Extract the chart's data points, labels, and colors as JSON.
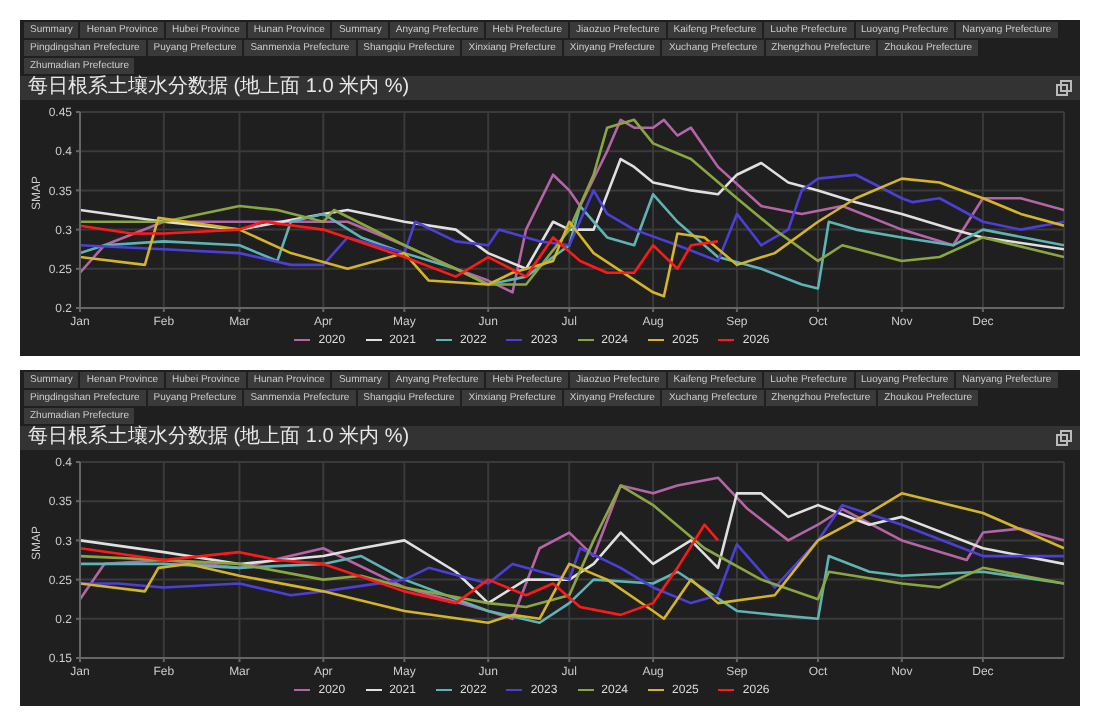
{
  "chart_data": [
    {
      "type": "line",
      "title": "每日根系土壤水分数据 (地上面 1.0 米内 %)",
      "ylabel": "SMAP",
      "annotations": [
        "Summary",
        "Henan Province",
        "Hubei Province",
        "Hunan Province",
        "Summary",
        "Anyang Prefecture",
        "Hebi Prefecture",
        "Jiaozuo Prefecture",
        "Kaifeng Prefecture",
        "Luohe Prefecture",
        "Luoyang Prefecture",
        "Nanyang Prefecture",
        "Pingdingshan Prefecture",
        "Puyang Prefecture",
        "Sanmenxia Prefecture",
        "Shangqiu Prefecture",
        "Xinxiang Prefecture",
        "Xinyang Prefecture",
        "Xuchang Prefecture",
        "Zhengzhou Prefecture",
        "Zhoukou Prefecture",
        "Zhumadian Prefecture"
      ],
      "xlim": [
        "--01-01",
        "--12-31"
      ],
      "xticks": [
        {
          "value": "--01-01",
          "label": "Jan"
        },
        {
          "value": "--02-01",
          "label": "Feb"
        },
        {
          "value": "--03-01",
          "label": "Mar"
        },
        {
          "value": "--04-01",
          "label": "Apr"
        },
        {
          "value": "--05-01",
          "label": "May"
        },
        {
          "value": "--06-01",
          "label": "Jun"
        },
        {
          "value": "--07-01",
          "label": "Jul"
        },
        {
          "value": "--08-01",
          "label": "Aug"
        },
        {
          "value": "--09-01",
          "label": "Sep"
        },
        {
          "value": "--10-01",
          "label": "Oct"
        },
        {
          "value": "--11-01",
          "label": "Nov"
        },
        {
          "value": "--12-01",
          "label": "Dec"
        }
      ],
      "ylim": [
        0.2,
        0.45
      ],
      "yticks": [
        0.2,
        0.25,
        0.3,
        0.35,
        0.4,
        0.45
      ],
      "grid": true,
      "legend": "bottom",
      "series": [
        {
          "name": "2020",
          "color": "#b565a7",
          "x": [
            "--01-01",
            "--01-10",
            "--02-01",
            "--03-01",
            "--03-20",
            "--04-10",
            "--05-01",
            "--05-20",
            "--06-01",
            "--06-10",
            "--06-15",
            "--06-25",
            "--07-01",
            "--07-05",
            "--07-15",
            "--07-20",
            "--07-25",
            "--08-01",
            "--08-05",
            "--08-10",
            "--08-15",
            "--08-25",
            "--09-10",
            "--09-25",
            "--10-10",
            "--11-01",
            "--11-20",
            "--12-01",
            "--12-15",
            "--12-31"
          ],
          "values": [
            0.245,
            0.28,
            0.31,
            0.31,
            0.31,
            0.31,
            0.28,
            0.25,
            0.235,
            0.22,
            0.3,
            0.37,
            0.35,
            0.33,
            0.4,
            0.44,
            0.43,
            0.43,
            0.44,
            0.42,
            0.43,
            0.38,
            0.33,
            0.32,
            0.33,
            0.3,
            0.28,
            0.34,
            0.34,
            0.325
          ]
        },
        {
          "name": "2021",
          "color": "#e0e0e0",
          "x": [
            "--01-01",
            "--02-01",
            "--03-01",
            "--04-01",
            "--04-10",
            "--05-01",
            "--05-20",
            "--06-01",
            "--06-15",
            "--06-25",
            "--07-01",
            "--07-10",
            "--07-20",
            "--07-25",
            "--08-01",
            "--08-15",
            "--08-25",
            "--09-01",
            "--09-10",
            "--09-20",
            "--10-01",
            "--10-15",
            "--11-01",
            "--11-20",
            "--12-01",
            "--12-31"
          ],
          "values": [
            0.325,
            0.31,
            0.3,
            0.32,
            0.325,
            0.31,
            0.3,
            0.27,
            0.25,
            0.31,
            0.3,
            0.3,
            0.39,
            0.38,
            0.36,
            0.35,
            0.345,
            0.37,
            0.385,
            0.36,
            0.35,
            0.335,
            0.32,
            0.3,
            0.29,
            0.275
          ]
        },
        {
          "name": "2022",
          "color": "#5fb3b3",
          "x": [
            "--01-01",
            "--01-10",
            "--02-01",
            "--03-01",
            "--03-15",
            "--03-20",
            "--04-01",
            "--04-15",
            "--05-01",
            "--05-20",
            "--06-01",
            "--06-15",
            "--07-01",
            "--07-05",
            "--07-15",
            "--07-25",
            "--08-01",
            "--08-10",
            "--08-25",
            "--09-10",
            "--09-25",
            "--10-01",
            "--10-05",
            "--10-15",
            "--11-01",
            "--11-20",
            "--12-01",
            "--12-31"
          ],
          "values": [
            0.27,
            0.28,
            0.285,
            0.28,
            0.26,
            0.31,
            0.32,
            0.29,
            0.27,
            0.25,
            0.23,
            0.24,
            0.28,
            0.33,
            0.29,
            0.28,
            0.345,
            0.31,
            0.265,
            0.25,
            0.23,
            0.225,
            0.31,
            0.3,
            0.29,
            0.28,
            0.3,
            0.28
          ]
        },
        {
          "name": "2023",
          "color": "#4b3fd6",
          "x": [
            "--01-01",
            "--02-01",
            "--03-01",
            "--03-20",
            "--04-01",
            "--04-10",
            "--05-01",
            "--05-05",
            "--05-20",
            "--06-01",
            "--06-05",
            "--06-20",
            "--07-01",
            "--07-10",
            "--07-15",
            "--07-25",
            "--08-10",
            "--08-25",
            "--09-01",
            "--09-10",
            "--09-20",
            "--09-25",
            "--10-01",
            "--10-15",
            "--11-01",
            "--11-05",
            "--11-15",
            "--12-01",
            "--12-15",
            "--12-31"
          ],
          "values": [
            0.28,
            0.275,
            0.27,
            0.255,
            0.255,
            0.29,
            0.27,
            0.31,
            0.285,
            0.28,
            0.3,
            0.285,
            0.28,
            0.35,
            0.32,
            0.3,
            0.28,
            0.26,
            0.32,
            0.28,
            0.3,
            0.35,
            0.365,
            0.37,
            0.34,
            0.335,
            0.34,
            0.31,
            0.3,
            0.31
          ]
        },
        {
          "name": "2024",
          "color": "#8aa640",
          "x": [
            "--01-01",
            "--02-01",
            "--03-01",
            "--03-15",
            "--04-01",
            "--04-05",
            "--05-01",
            "--05-20",
            "--06-01",
            "--06-15",
            "--07-01",
            "--07-10",
            "--07-15",
            "--07-25",
            "--08-01",
            "--08-15",
            "--09-01",
            "--09-15",
            "--10-01",
            "--10-10",
            "--11-01",
            "--11-15",
            "--12-01",
            "--12-31"
          ],
          "values": [
            0.31,
            0.31,
            0.33,
            0.325,
            0.31,
            0.325,
            0.28,
            0.25,
            0.23,
            0.23,
            0.3,
            0.37,
            0.43,
            0.44,
            0.41,
            0.39,
            0.34,
            0.3,
            0.26,
            0.28,
            0.26,
            0.265,
            0.29,
            0.265
          ]
        },
        {
          "name": "2025",
          "color": "#d4b42a",
          "x": [
            "--01-01",
            "--01-25",
            "--01-30",
            "--03-01",
            "--03-20",
            "--04-10",
            "--05-01",
            "--05-10",
            "--06-01",
            "--06-10",
            "--06-25",
            "--07-01",
            "--07-10",
            "--08-01",
            "--08-05",
            "--08-10",
            "--08-20",
            "--09-01",
            "--09-15",
            "--10-01",
            "--10-15",
            "--11-01",
            "--11-15",
            "--12-01",
            "--12-15",
            "--12-31"
          ],
          "values": [
            0.265,
            0.255,
            0.315,
            0.3,
            0.27,
            0.25,
            0.27,
            0.235,
            0.23,
            0.245,
            0.26,
            0.31,
            0.27,
            0.22,
            0.215,
            0.295,
            0.29,
            0.255,
            0.27,
            0.31,
            0.34,
            0.365,
            0.36,
            0.34,
            0.32,
            0.305
          ]
        },
        {
          "name": "2026",
          "color": "#ff1a1a",
          "x": [
            "--01-01",
            "--01-20",
            "--02-01",
            "--03-01",
            "--03-10",
            "--04-01",
            "--05-01",
            "--05-20",
            "--06-01",
            "--06-15",
            "--06-25",
            "--07-05",
            "--07-15",
            "--07-25",
            "--08-01",
            "--08-10",
            "--08-15",
            "--08-25"
          ],
          "values": [
            0.305,
            0.295,
            0.295,
            0.3,
            0.31,
            0.3,
            0.265,
            0.24,
            0.265,
            0.24,
            0.29,
            0.26,
            0.245,
            0.245,
            0.28,
            0.25,
            0.28,
            0.285
          ]
        }
      ]
    },
    {
      "type": "line",
      "title": "每日根系土壤水分数据 (地上面 1.0 米内 %)",
      "ylabel": "SMAP",
      "annotations": [
        "Summary",
        "Henan Province",
        "Hubei Province",
        "Hunan Province",
        "Summary",
        "Anyang Prefecture",
        "Hebi Prefecture",
        "Jiaozuo Prefecture",
        "Kaifeng Prefecture",
        "Luohe Prefecture",
        "Luoyang Prefecture",
        "Nanyang Prefecture",
        "Pingdingshan Prefecture",
        "Puyang Prefecture",
        "Sanmenxia Prefecture",
        "Shangqiu Prefecture",
        "Xinxiang Prefecture",
        "Xinyang Prefecture",
        "Xuchang Prefecture",
        "Zhengzhou Prefecture",
        "Zhoukou Prefecture",
        "Zhumadian Prefecture"
      ],
      "xlim": [
        "--01-01",
        "--12-31"
      ],
      "xticks": [
        {
          "value": "--01-01",
          "label": "Jan"
        },
        {
          "value": "--02-01",
          "label": "Feb"
        },
        {
          "value": "--03-01",
          "label": "Mar"
        },
        {
          "value": "--04-01",
          "label": "Apr"
        },
        {
          "value": "--05-01",
          "label": "May"
        },
        {
          "value": "--06-01",
          "label": "Jun"
        },
        {
          "value": "--07-01",
          "label": "Jul"
        },
        {
          "value": "--08-01",
          "label": "Aug"
        },
        {
          "value": "--09-01",
          "label": "Sep"
        },
        {
          "value": "--10-01",
          "label": "Oct"
        },
        {
          "value": "--11-01",
          "label": "Nov"
        },
        {
          "value": "--12-01",
          "label": "Dec"
        }
      ],
      "ylim": [
        0.15,
        0.4
      ],
      "yticks": [
        0.15,
        0.2,
        0.25,
        0.3,
        0.35,
        0.4
      ],
      "grid": true,
      "legend": "bottom",
      "series": [
        {
          "name": "2020",
          "color": "#b565a7",
          "x": [
            "--01-01",
            "--01-10",
            "--02-01",
            "--03-01",
            "--04-01",
            "--05-01",
            "--06-01",
            "--06-10",
            "--06-20",
            "--07-01",
            "--07-10",
            "--07-20",
            "--08-01",
            "--08-10",
            "--08-25",
            "--09-05",
            "--09-20",
            "--10-01",
            "--10-10",
            "--11-01",
            "--11-25",
            "--12-01",
            "--12-15",
            "--12-31"
          ],
          "values": [
            0.225,
            0.27,
            0.275,
            0.265,
            0.29,
            0.24,
            0.21,
            0.2,
            0.29,
            0.31,
            0.28,
            0.37,
            0.36,
            0.37,
            0.38,
            0.34,
            0.3,
            0.32,
            0.34,
            0.3,
            0.275,
            0.31,
            0.315,
            0.3
          ]
        },
        {
          "name": "2021",
          "color": "#e0e0e0",
          "x": [
            "--01-01",
            "--02-01",
            "--03-01",
            "--04-01",
            "--04-15",
            "--05-01",
            "--05-20",
            "--06-01",
            "--06-15",
            "--07-01",
            "--07-10",
            "--07-20",
            "--08-01",
            "--08-15",
            "--08-25",
            "--09-01",
            "--09-10",
            "--09-20",
            "--10-01",
            "--10-20",
            "--11-01",
            "--12-01",
            "--12-31"
          ],
          "values": [
            0.3,
            0.285,
            0.27,
            0.28,
            0.29,
            0.3,
            0.26,
            0.22,
            0.25,
            0.25,
            0.27,
            0.31,
            0.27,
            0.3,
            0.265,
            0.36,
            0.36,
            0.33,
            0.345,
            0.32,
            0.33,
            0.29,
            0.27
          ]
        },
        {
          "name": "2022",
          "color": "#5fb3b3",
          "x": [
            "--01-01",
            "--02-01",
            "--03-01",
            "--04-01",
            "--04-15",
            "--05-01",
            "--06-01",
            "--06-20",
            "--07-01",
            "--07-10",
            "--08-01",
            "--08-10",
            "--09-01",
            "--09-15",
            "--10-01",
            "--10-05",
            "--10-20",
            "--11-01",
            "--12-01",
            "--12-31"
          ],
          "values": [
            0.27,
            0.27,
            0.265,
            0.27,
            0.28,
            0.25,
            0.21,
            0.195,
            0.22,
            0.25,
            0.245,
            0.26,
            0.21,
            0.205,
            0.2,
            0.28,
            0.26,
            0.255,
            0.26,
            0.245
          ]
        },
        {
          "name": "2023",
          "color": "#4b3fd6",
          "x": [
            "--01-01",
            "--01-15",
            "--02-01",
            "--03-01",
            "--03-20",
            "--04-01",
            "--05-01",
            "--05-10",
            "--06-01",
            "--06-10",
            "--07-01",
            "--07-05",
            "--07-20",
            "--08-01",
            "--08-15",
            "--08-25",
            "--09-01",
            "--09-15",
            "--10-01",
            "--10-10",
            "--11-01",
            "--12-01",
            "--12-31"
          ],
          "values": [
            0.245,
            0.245,
            0.24,
            0.245,
            0.23,
            0.235,
            0.25,
            0.265,
            0.245,
            0.27,
            0.25,
            0.29,
            0.265,
            0.24,
            0.22,
            0.23,
            0.295,
            0.24,
            0.3,
            0.345,
            0.32,
            0.28,
            0.28
          ]
        },
        {
          "name": "2024",
          "color": "#8aa640",
          "x": [
            "--01-01",
            "--02-01",
            "--03-01",
            "--04-01",
            "--04-15",
            "--05-01",
            "--06-01",
            "--06-15",
            "--07-01",
            "--07-10",
            "--07-20",
            "--08-01",
            "--08-20",
            "--09-10",
            "--10-01",
            "--10-05",
            "--11-01",
            "--11-15",
            "--12-01",
            "--12-31"
          ],
          "values": [
            0.28,
            0.275,
            0.27,
            0.25,
            0.255,
            0.24,
            0.22,
            0.215,
            0.23,
            0.3,
            0.37,
            0.345,
            0.29,
            0.25,
            0.225,
            0.26,
            0.245,
            0.24,
            0.265,
            0.245
          ]
        },
        {
          "name": "2025",
          "color": "#d4b42a",
          "x": [
            "--01-01",
            "--01-25",
            "--01-30",
            "--02-10",
            "--03-01",
            "--04-01",
            "--05-01",
            "--06-01",
            "--06-10",
            "--06-20",
            "--07-01",
            "--07-15",
            "--08-01",
            "--08-05",
            "--08-15",
            "--08-25",
            "--09-15",
            "--10-01",
            "--10-20",
            "--11-01",
            "--12-01",
            "--12-31"
          ],
          "values": [
            0.245,
            0.235,
            0.265,
            0.27,
            0.255,
            0.235,
            0.21,
            0.195,
            0.205,
            0.2,
            0.27,
            0.25,
            0.21,
            0.2,
            0.25,
            0.22,
            0.23,
            0.3,
            0.335,
            0.36,
            0.335,
            0.29
          ]
        },
        {
          "name": "2026",
          "color": "#ff1a1a",
          "x": [
            "--01-01",
            "--02-01",
            "--03-01",
            "--03-15",
            "--04-01",
            "--05-01",
            "--05-20",
            "--06-01",
            "--06-15",
            "--06-25",
            "--07-05",
            "--07-20",
            "--08-01",
            "--08-10",
            "--08-20",
            "--08-25"
          ],
          "values": [
            0.29,
            0.275,
            0.285,
            0.275,
            0.27,
            0.235,
            0.22,
            0.25,
            0.23,
            0.245,
            0.215,
            0.205,
            0.22,
            0.265,
            0.32,
            0.3
          ]
        }
      ]
    }
  ]
}
